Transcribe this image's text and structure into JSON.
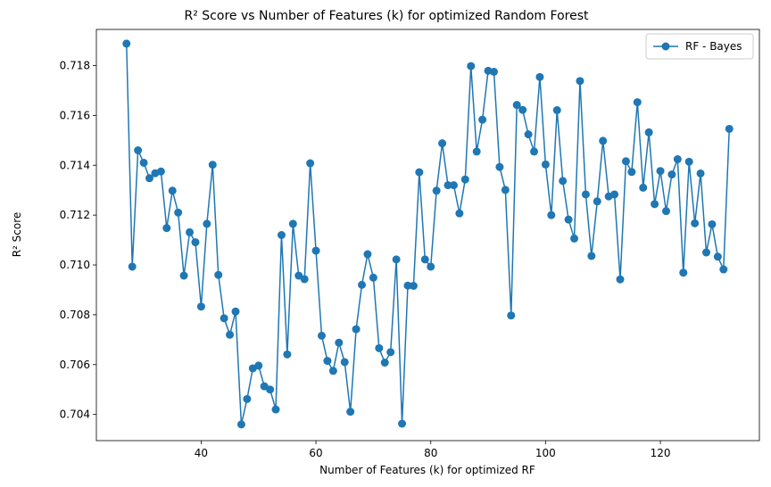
{
  "chart_data": {
    "type": "line",
    "title": "R² Score vs Number of Features (k) for optimized Random Forest",
    "xlabel": "Number of Features (k) for optimized RF",
    "ylabel": "R² Score",
    "xlim": [
      21.75,
      137.25
    ],
    "ylim": [
      0.70295,
      0.71945
    ],
    "xticks": [
      40,
      60,
      80,
      100,
      120
    ],
    "yticks": [
      0.704,
      0.706,
      0.708,
      0.71,
      0.712,
      0.714,
      0.716,
      0.718
    ],
    "ytick_labels": [
      "0.704",
      "0.706",
      "0.708",
      "0.710",
      "0.712",
      "0.714",
      "0.716",
      "0.718"
    ],
    "grid": false,
    "legend_position": "top-right",
    "series": [
      {
        "name": "RF - Bayes",
        "color": "#1f77b4",
        "marker": "circle",
        "x": [
          27,
          28,
          29,
          30,
          31,
          32,
          33,
          34,
          35,
          36,
          37,
          38,
          39,
          40,
          41,
          42,
          43,
          44,
          45,
          46,
          47,
          48,
          49,
          50,
          51,
          52,
          53,
          54,
          55,
          56,
          57,
          58,
          59,
          60,
          61,
          62,
          63,
          64,
          65,
          66,
          67,
          68,
          69,
          70,
          71,
          72,
          73,
          74,
          75,
          76,
          77,
          78,
          79,
          80,
          81,
          82,
          83,
          84,
          85,
          86,
          87,
          88,
          89,
          90,
          91,
          92,
          93,
          94,
          95,
          96,
          97,
          98,
          99,
          100,
          101,
          102,
          103,
          104,
          105,
          106,
          107,
          108,
          109,
          110,
          111,
          112,
          113,
          114,
          115,
          116,
          117,
          118,
          119,
          120,
          121,
          122,
          123,
          124,
          125,
          126,
          127,
          128,
          129,
          130,
          131,
          132
        ],
        "y": [
          0.71888,
          0.70993,
          0.7146,
          0.7141,
          0.71348,
          0.71368,
          0.71375,
          0.71148,
          0.71298,
          0.7121,
          0.70957,
          0.71131,
          0.71091,
          0.70833,
          0.71165,
          0.71402,
          0.7096,
          0.70786,
          0.7072,
          0.70813,
          0.7036,
          0.70462,
          0.70585,
          0.70596,
          0.70513,
          0.705,
          0.7042,
          0.7112,
          0.70641,
          0.71165,
          0.70957,
          0.70943,
          0.71408,
          0.71057,
          0.70716,
          0.70615,
          0.70575,
          0.70688,
          0.7061,
          0.70411,
          0.70742,
          0.7092,
          0.71043,
          0.70949,
          0.70666,
          0.70608,
          0.7065,
          0.71022,
          0.70363,
          0.70917,
          0.70916,
          0.71372,
          0.71022,
          0.70993,
          0.71298,
          0.71488,
          0.7132,
          0.7132,
          0.71207,
          0.71343,
          0.71798,
          0.71455,
          0.71583,
          0.71779,
          0.71775,
          0.71393,
          0.71301,
          0.70797,
          0.71642,
          0.71622,
          0.71524,
          0.71455,
          0.71754,
          0.71403,
          0.712,
          0.71621,
          0.71337,
          0.71182,
          0.71106,
          0.71738,
          0.71283,
          0.71036,
          0.71255,
          0.71498,
          0.71275,
          0.71283,
          0.70942,
          0.71416,
          0.71373,
          0.71653,
          0.7131,
          0.71532,
          0.71244,
          0.71377,
          0.71216,
          0.71363,
          0.71424,
          0.70969,
          0.71414,
          0.71167,
          0.71367,
          0.7105,
          0.71163,
          0.71033,
          0.70982,
          0.71546
        ]
      }
    ]
  }
}
